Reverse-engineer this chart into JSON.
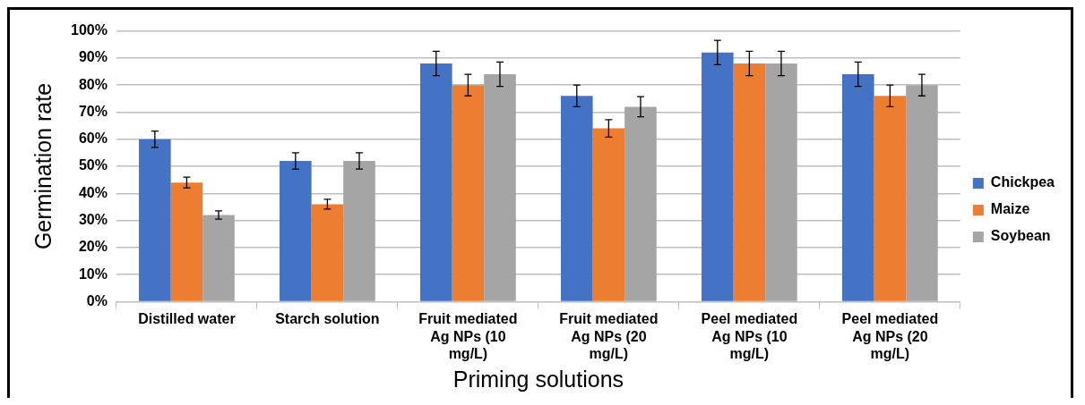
{
  "chart_data": {
    "type": "bar",
    "xlabel": "Priming solutions",
    "ylabel": "Germination rate",
    "categories": [
      "Distilled water",
      "Starch solution",
      "Fruit mediated Ag NPs (10 mg/L)",
      "Fruit mediated Ag NPs (20 mg/L)",
      "Peel mediated Ag NPs (10 mg/L)",
      "Peel mediated Ag NPs (20 mg/L)"
    ],
    "series": [
      {
        "name": "Chickpea",
        "color": "#4472c4",
        "values": [
          60,
          52,
          88,
          76,
          92,
          84
        ],
        "errors": [
          3,
          3,
          4.5,
          4,
          4.5,
          4.5
        ]
      },
      {
        "name": "Maize",
        "color": "#ed7d31",
        "values": [
          44,
          36,
          80,
          64,
          88,
          76
        ],
        "errors": [
          2,
          1.8,
          4,
          3.2,
          4.5,
          4
        ]
      },
      {
        "name": "Soybean",
        "color": "#a5a5a5",
        "values": [
          32,
          52,
          84,
          72,
          88,
          80
        ],
        "errors": [
          1.5,
          3,
          4.5,
          3.7,
          4.5,
          4
        ]
      }
    ],
    "ylim": [
      0,
      100
    ],
    "yticks": [
      {
        "value": 0,
        "label": "0%"
      },
      {
        "value": 10,
        "label": "10%"
      },
      {
        "value": 20,
        "label": "20%"
      },
      {
        "value": 30,
        "label": "30%"
      },
      {
        "value": 40,
        "label": "40%"
      },
      {
        "value": 50,
        "label": "50%"
      },
      {
        "value": 60,
        "label": "60%"
      },
      {
        "value": 70,
        "label": "70%"
      },
      {
        "value": 80,
        "label": "80%"
      },
      {
        "value": 90,
        "label": "90%"
      },
      {
        "value": 100,
        "label": "100%"
      }
    ],
    "grid": "y",
    "legend": "right"
  }
}
